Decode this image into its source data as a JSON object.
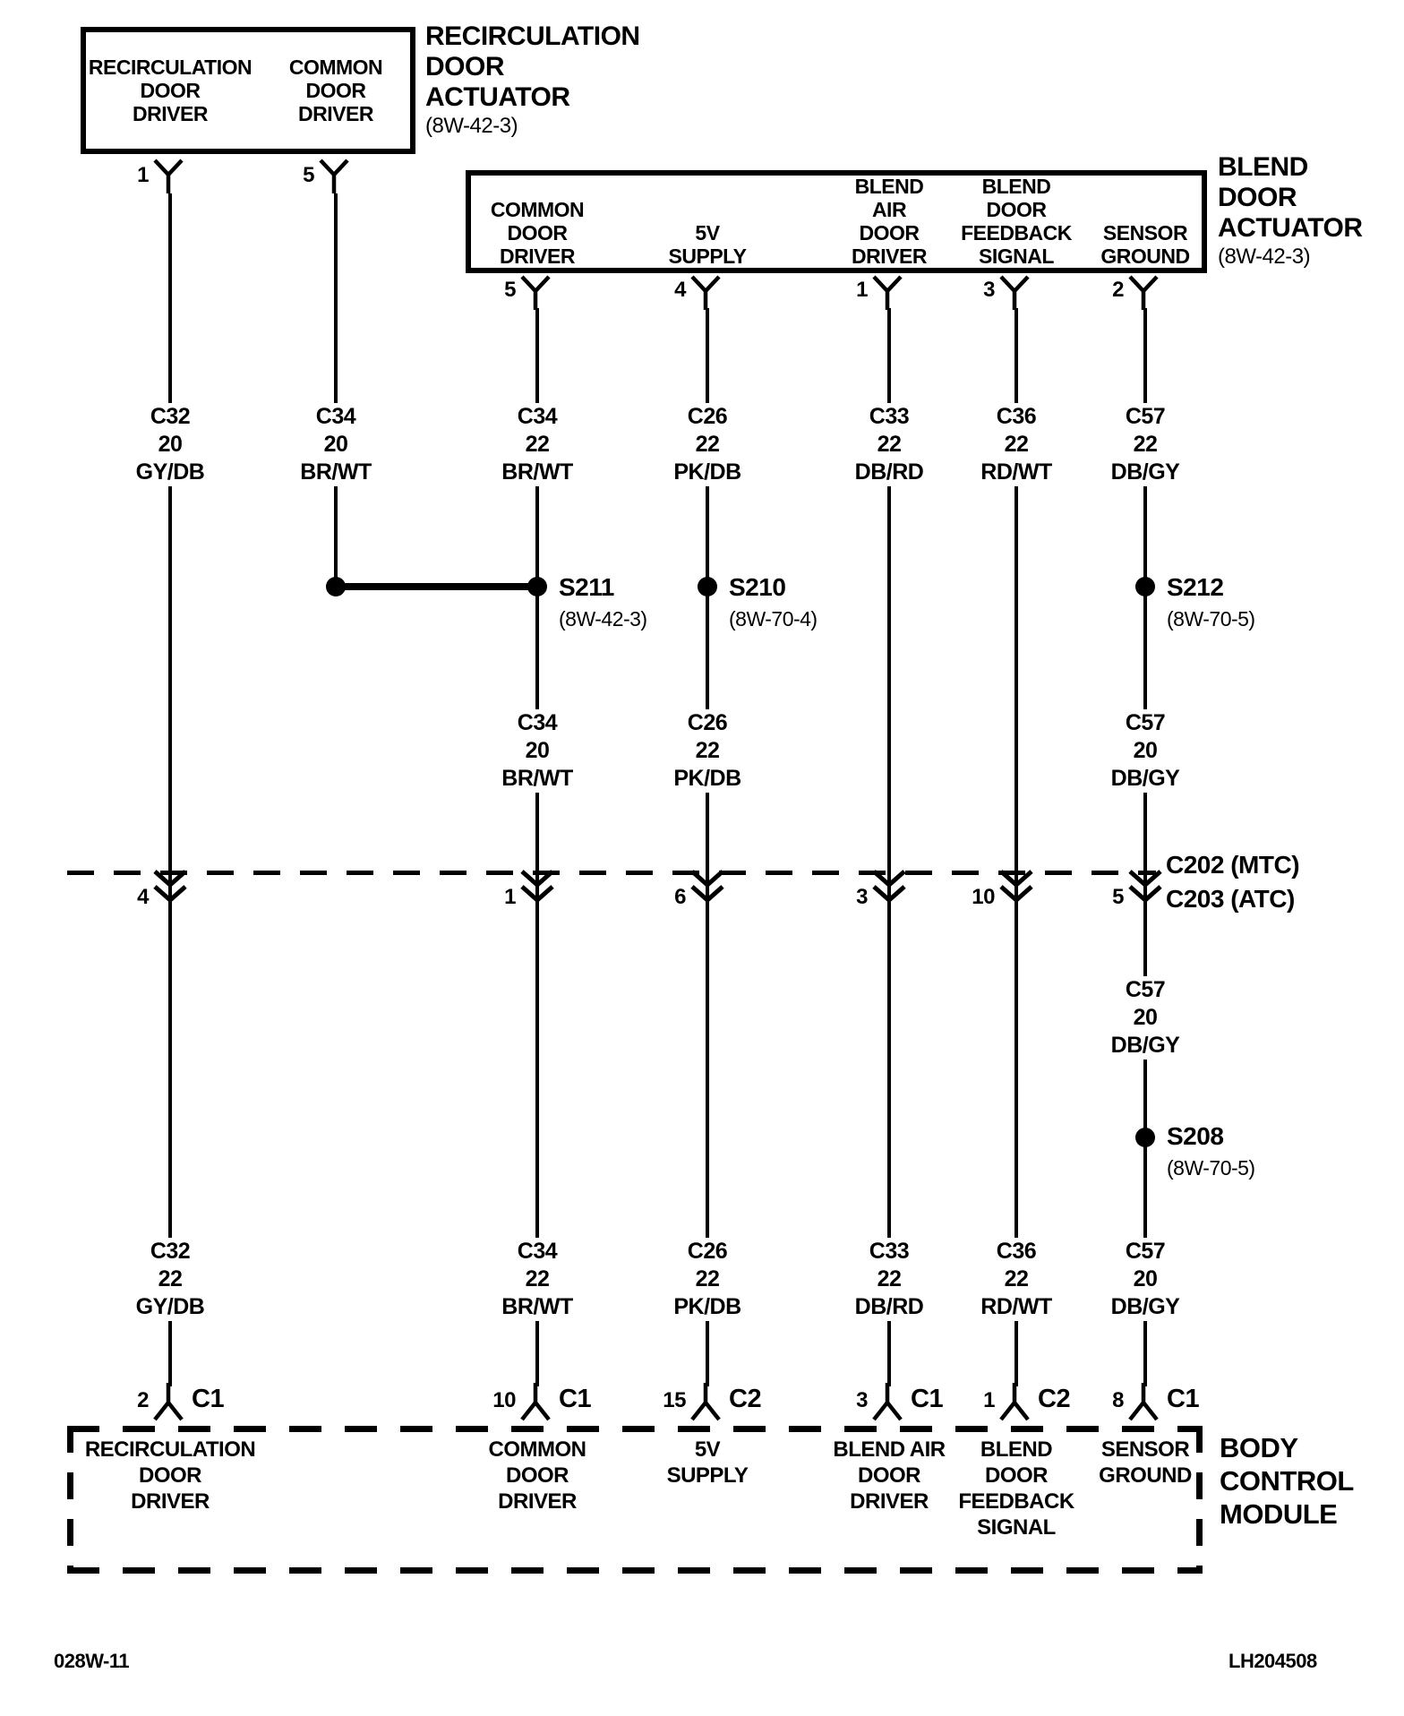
{
  "colors": {
    "ink": "#000000",
    "paper": "#ffffff"
  },
  "recirc_actuator": {
    "title": [
      "RECIRCULATION",
      "DOOR",
      "ACTUATOR"
    ],
    "ref": "(8W-42-3)",
    "pins": [
      {
        "num": "1",
        "label": [
          "RECIRCULATION",
          "DOOR",
          "DRIVER"
        ]
      },
      {
        "num": "5",
        "label": [
          "COMMON",
          "DOOR",
          "DRIVER"
        ]
      }
    ]
  },
  "blend_actuator": {
    "title": [
      "BLEND",
      "DOOR",
      "ACTUATOR"
    ],
    "ref": "(8W-42-3)",
    "pins": [
      {
        "num": "5",
        "label": [
          "COMMON",
          "DOOR",
          "DRIVER"
        ]
      },
      {
        "num": "4",
        "label": [
          "5V",
          "SUPPLY"
        ]
      },
      {
        "num": "1",
        "label": [
          "BLEND",
          "AIR",
          "DOOR",
          "DRIVER"
        ]
      },
      {
        "num": "3",
        "label": [
          "BLEND",
          "DOOR",
          "FEEDBACK",
          "SIGNAL"
        ]
      },
      {
        "num": "2",
        "label": [
          "SENSOR",
          "GROUND"
        ]
      }
    ]
  },
  "wire_labels": {
    "top": [
      [
        "C32",
        "20",
        "GY/DB"
      ],
      [
        "C34",
        "20",
        "BR/WT"
      ],
      [
        "C34",
        "22",
        "BR/WT"
      ],
      [
        "C26",
        "22",
        "PK/DB"
      ],
      [
        "C33",
        "22",
        "DB/RD"
      ],
      [
        "C36",
        "22",
        "RD/WT"
      ],
      [
        "C57",
        "22",
        "DB/GY"
      ]
    ],
    "mid": [
      [
        "C34",
        "20",
        "BR/WT"
      ],
      [
        "C26",
        "22",
        "PK/DB"
      ],
      [
        "C57",
        "20",
        "DB/GY"
      ]
    ],
    "sensor_ground_lower": [
      "C57",
      "20",
      "DB/GY"
    ],
    "bottom": [
      [
        "C32",
        "22",
        "GY/DB"
      ],
      [
        "C34",
        "22",
        "BR/WT"
      ],
      [
        "C26",
        "22",
        "PK/DB"
      ],
      [
        "C33",
        "22",
        "DB/RD"
      ],
      [
        "C36",
        "22",
        "RD/WT"
      ],
      [
        "C57",
        "20",
        "DB/GY"
      ]
    ]
  },
  "splices": {
    "s211": {
      "name": "S211",
      "ref": "(8W-42-3)"
    },
    "s210": {
      "name": "S210",
      "ref": "(8W-70-4)"
    },
    "s212": {
      "name": "S212",
      "ref": "(8W-70-5)"
    },
    "s208": {
      "name": "S208",
      "ref": "(8W-70-5)"
    }
  },
  "inline_connector": {
    "line1": "C202 (MTC)",
    "line2": "C203 (ATC)",
    "pins": [
      "4",
      "1",
      "6",
      "3",
      "10",
      "5"
    ]
  },
  "bcm": {
    "title": [
      "BODY",
      "CONTROL",
      "MODULE"
    ],
    "pins": [
      {
        "num": "2",
        "conn": "C1",
        "label": [
          "RECIRCULATION",
          "DOOR",
          "DRIVER"
        ]
      },
      {
        "num": "10",
        "conn": "C1",
        "label": [
          "COMMON",
          "DOOR",
          "DRIVER"
        ]
      },
      {
        "num": "15",
        "conn": "C2",
        "label": [
          "5V",
          "SUPPLY"
        ]
      },
      {
        "num": "3",
        "conn": "C1",
        "label": [
          "BLEND AIR",
          "DOOR",
          "DRIVER"
        ]
      },
      {
        "num": "1",
        "conn": "C2",
        "label": [
          "BLEND",
          "DOOR",
          "FEEDBACK",
          "SIGNAL"
        ]
      },
      {
        "num": "8",
        "conn": "C1",
        "label": [
          "SENSOR",
          "GROUND"
        ]
      }
    ]
  },
  "footer": {
    "left": "028W-11",
    "right": "LH204508"
  }
}
